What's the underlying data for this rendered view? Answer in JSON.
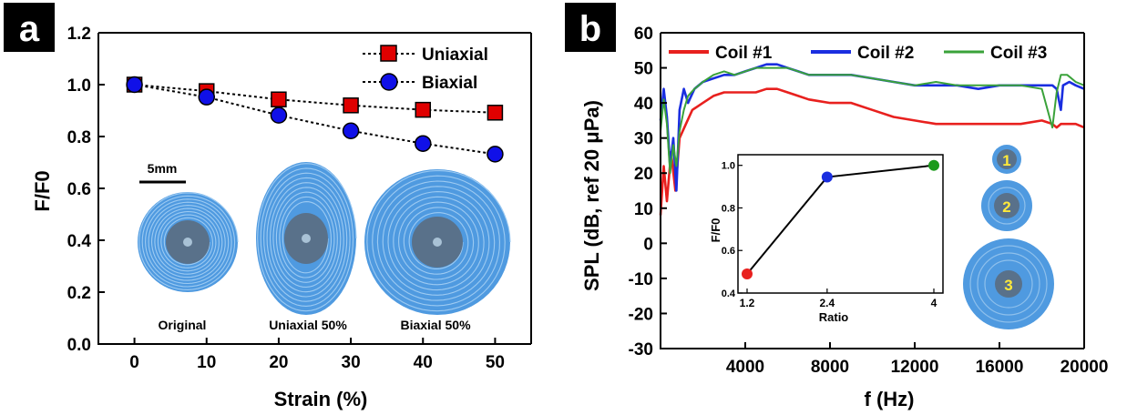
{
  "chart_data": [
    {
      "panel": "a",
      "type": "line",
      "xlabel": "Strain (%)",
      "ylabel": "F/F0",
      "xlim": [
        -5,
        55
      ],
      "ylim": [
        0.0,
        1.2
      ],
      "xticks": [
        "0",
        "10",
        "20",
        "30",
        "40",
        "50"
      ],
      "yticks": [
        "0.0",
        "0.2",
        "0.4",
        "0.6",
        "0.8",
        "1.0",
        "1.2"
      ],
      "legend_placement": "top-right",
      "series": [
        {
          "name": "Uniaxial",
          "marker": "square",
          "color": "#e00000",
          "x": [
            0,
            10,
            20,
            30,
            40,
            50
          ],
          "y": [
            1.0,
            0.975,
            0.943,
            0.92,
            0.903,
            0.892
          ]
        },
        {
          "name": "Biaxial",
          "marker": "circle",
          "color": "#1010e8",
          "x": [
            0,
            10,
            20,
            30,
            40,
            50
          ],
          "y": [
            1.0,
            0.952,
            0.882,
            0.822,
            0.773,
            0.732
          ]
        }
      ],
      "inset": {
        "scale_bar": "5mm",
        "captions": [
          "Original",
          "Uniaxial 50%",
          "Biaxial 50%"
        ]
      }
    },
    {
      "panel": "b",
      "type": "line",
      "xlabel": "f (Hz)",
      "ylabel": "SPL (dB, ref 20 μPa)",
      "xlim": [
        0,
        20000
      ],
      "ylim": [
        -30,
        60
      ],
      "xticks": [
        "4000",
        "8000",
        "12000",
        "16000",
        "20000"
      ],
      "yticks": [
        "-30",
        "-20",
        "-10",
        "0",
        "10",
        "20",
        "30",
        "40",
        "50",
        "60"
      ],
      "legend_placement": "top",
      "series": [
        {
          "name": "Coil #1",
          "color": "#e8201e",
          "x": [
            0,
            150,
            300,
            500,
            700,
            900,
            1200,
            1500,
            2000,
            2500,
            3000,
            3500,
            4000,
            4500,
            5000,
            5500,
            6000,
            6500,
            7000,
            8000,
            9000,
            10000,
            11000,
            12000,
            13000,
            14000,
            15000,
            16000,
            17000,
            18000,
            18500,
            18700,
            18900,
            19200,
            19600,
            20000
          ],
          "y": [
            8,
            22,
            12,
            26,
            15,
            30,
            34,
            38,
            40,
            42,
            43,
            43,
            43,
            43,
            44,
            44,
            43,
            42,
            41,
            40,
            40,
            38,
            36,
            35,
            34,
            34,
            34,
            34,
            34,
            35,
            34,
            33,
            34,
            34,
            34,
            33
          ]
        },
        {
          "name": "Coil #2",
          "color": "#1a2ee0",
          "x": [
            0,
            150,
            300,
            450,
            600,
            750,
            900,
            1100,
            1300,
            1600,
            2000,
            2500,
            3000,
            3500,
            4000,
            4500,
            5000,
            5500,
            6000,
            6500,
            7000,
            8000,
            9000,
            10000,
            11000,
            12000,
            13000,
            14000,
            15000,
            16000,
            17000,
            18000,
            18500,
            18700,
            18900,
            19000,
            19300,
            19600,
            20000
          ],
          "y": [
            35,
            44,
            36,
            22,
            30,
            15,
            38,
            44,
            40,
            44,
            46,
            47,
            48,
            48,
            49,
            50,
            51,
            51,
            50,
            49,
            48,
            48,
            48,
            47,
            46,
            45,
            45,
            45,
            44,
            45,
            45,
            45,
            45,
            44,
            38,
            45,
            46,
            45,
            44
          ]
        },
        {
          "name": "Coil #3",
          "color": "#3aa23a",
          "x": [
            0,
            150,
            300,
            450,
            600,
            750,
            900,
            1100,
            1300,
            1600,
            2000,
            2500,
            3000,
            3500,
            4000,
            4500,
            5000,
            5500,
            6000,
            6500,
            7000,
            8000,
            9000,
            10000,
            11000,
            12000,
            13000,
            14000,
            15000,
            16000,
            17000,
            18000,
            18500,
            18700,
            18900,
            19200,
            19600,
            20000
          ],
          "y": [
            32,
            41,
            34,
            20,
            28,
            22,
            32,
            38,
            42,
            44,
            46,
            48,
            49,
            48,
            49,
            50,
            50,
            50,
            50,
            49,
            48,
            48,
            48,
            47,
            46,
            45,
            46,
            45,
            45,
            45,
            45,
            44,
            33,
            43,
            48,
            48,
            46,
            45
          ]
        }
      ],
      "inset": {
        "type": "line",
        "xlabel": "Ratio",
        "ylabel": "F/F0",
        "xticks": [
          "1.2",
          "2.4",
          "4"
        ],
        "yticks": [
          "0.4",
          "0.6",
          "0.8",
          "1.0"
        ],
        "x": [
          1.2,
          2.4,
          4.0
        ],
        "y": [
          0.49,
          0.945,
          1.0
        ],
        "point_colors": [
          "#e8201e",
          "#1a2ee0",
          "#1a9a1a"
        ]
      },
      "coil_labels": [
        "1",
        "2",
        "3"
      ]
    }
  ]
}
